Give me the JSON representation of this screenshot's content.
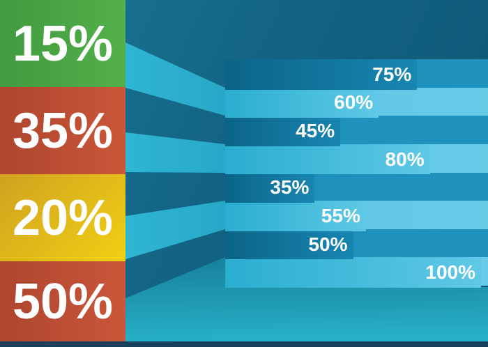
{
  "chart_data": {
    "type": "bar",
    "title": "",
    "xlabel": "",
    "ylabel": "",
    "front_blocks": {
      "labels": [
        "15%",
        "35%",
        "20%",
        "50%"
      ],
      "values": [
        15,
        35,
        20,
        50
      ],
      "colors": [
        [
          "#3f9b3e",
          "#54b04a"
        ],
        [
          "#ae452f",
          "#ca5739"
        ],
        [
          "#d0a21f",
          "#f0d014"
        ],
        [
          "#ae452f",
          "#ca5739"
        ]
      ]
    },
    "perspective_bars": {
      "labels": [
        "75%",
        "60%",
        "45%",
        "80%",
        "35%",
        "55%",
        "50%",
        "100%"
      ],
      "values": [
        75,
        60,
        45,
        80,
        35,
        55,
        50,
        100
      ],
      "shades": [
        "dark",
        "light",
        "dark",
        "light",
        "dark",
        "light",
        "dark",
        "light"
      ],
      "xlim": [
        0,
        100
      ],
      "legend": "none",
      "grid": false
    }
  },
  "palette": {
    "background_from": "#1b7896",
    "background_mid": "#136384",
    "background_to": "#0d5674",
    "ray_light_from": "#2eb6d2",
    "ray_light_to": "#28a8c8",
    "floor_from": "#17809b",
    "floor_to": "#27b1c8",
    "bar_dark_from": "#0b6487",
    "bar_dark_to": "#1886b2",
    "bar_dark_rest": "#1d8fba",
    "bar_light_from": "#2aaed0",
    "bar_light_to": "#5fc8e6",
    "bar_light_rest": "#5cc5e4",
    "bottom_strip": "#17405a",
    "label_color": "#ffffff"
  }
}
